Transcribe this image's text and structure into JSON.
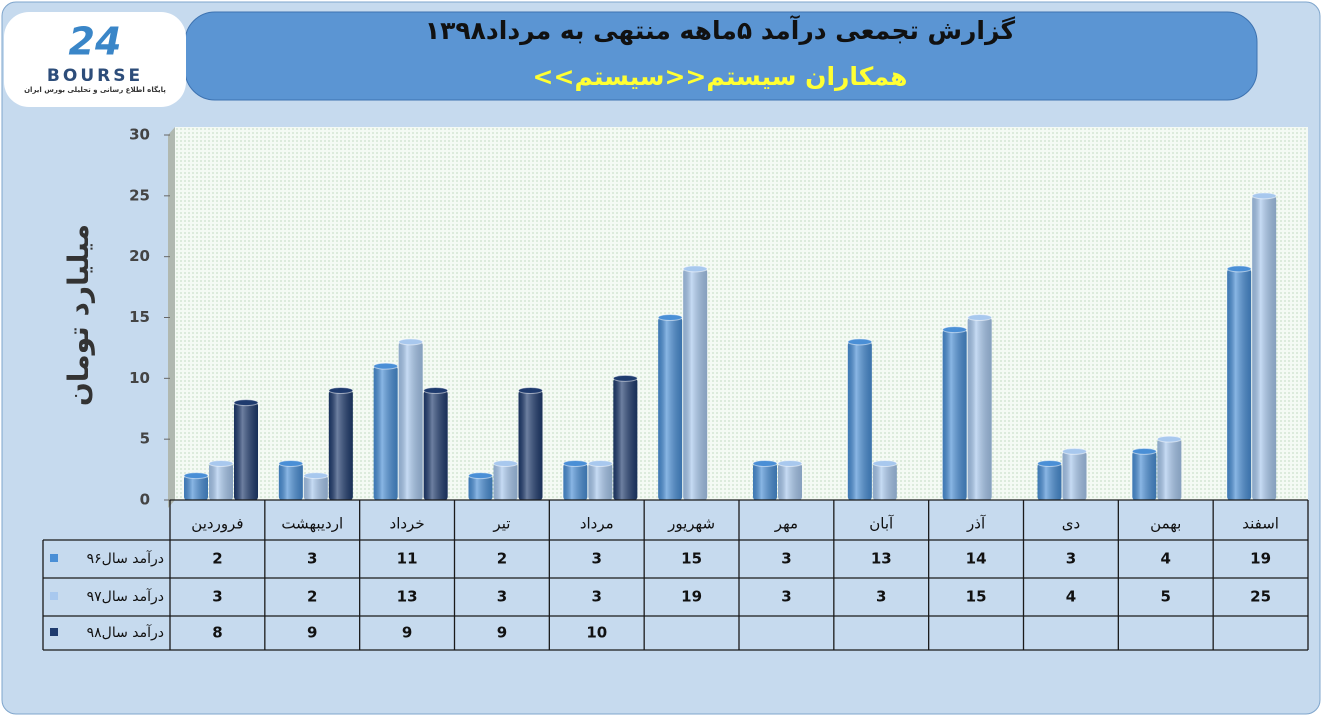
{
  "logo": {
    "mark": "24",
    "name": "BOURSE",
    "tagline": "پایگاه اطلاع رسانی و تحلیلی بورس ایران"
  },
  "chart_data": {
    "type": "bar",
    "title": "گزارش تجمعی درآمد ۵ماهه منتهی به مرداد۱۳۹۸",
    "subtitle": "همکاران سیستم<<سیستم>>",
    "y_label": "میلیارد تومان",
    "categories": [
      "فروردین",
      "اردیبهشت",
      "خرداد",
      "تیر",
      "مرداد",
      "شهریور",
      "مهر",
      "آبان",
      "آذر",
      "دی",
      "بهمن",
      "اسفند"
    ],
    "series": [
      {
        "name": "درآمد سال۹۶",
        "color": "#4a8fd6",
        "values": [
          2,
          3,
          11,
          2,
          3,
          15,
          3,
          13,
          14,
          3,
          4,
          19
        ]
      },
      {
        "name": "درآمد سال۹۷",
        "color": "#a8c8ee",
        "values": [
          3,
          2,
          13,
          3,
          3,
          19,
          3,
          3,
          15,
          4,
          5,
          25
        ]
      },
      {
        "name": "درآمد  سال۹۸",
        "color": "#1f3b6e",
        "values": [
          8,
          9,
          9,
          9,
          10,
          null,
          null,
          null,
          null,
          null,
          null,
          null
        ]
      }
    ],
    "ylim": [
      0,
      30
    ],
    "yticks": [
      0,
      5,
      10,
      15,
      20,
      25,
      30
    ]
  }
}
